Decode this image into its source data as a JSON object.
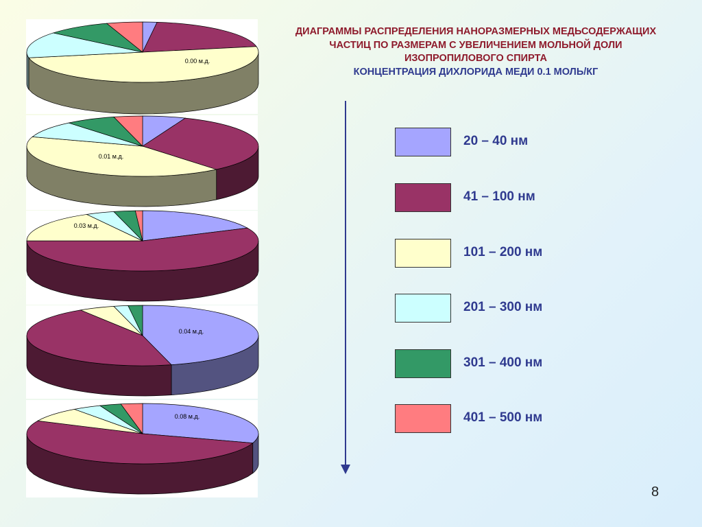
{
  "title": {
    "line1": "ДИАГРАММЫ РАСПРЕДЕЛЕНИЯ НАНОРАЗМЕРНЫХ МЕДЬСОДЕРЖАЩИХ",
    "line2": "ЧАСТИЦ ПО РАЗМЕРАМ С УВЕЛИЧЕНИЕМ МОЛЬНОЙ ДОЛИ",
    "line3": "ИЗОПРОПИЛОВОГО СПИРТА",
    "line4": "КОНЦЕНТРАЦИЯ ДИХЛОРИДА МЕДИ 0.1 МОЛЬ/КГ"
  },
  "legend": [
    {
      "label": "20 – 40 нм",
      "color": "#a5a5ff"
    },
    {
      "label": "41 – 100 нм",
      "color": "#993366"
    },
    {
      "label": "101 – 200 нм",
      "color": "#ffffcc"
    },
    {
      "label": "201 – 300 нм",
      "color": "#ccffff"
    },
    {
      "label": "301 – 400 нм",
      "color": "#339966"
    },
    {
      "label": "401 – 500 нм",
      "color": "#ff7c80"
    }
  ],
  "colors": {
    "slice_colors": [
      "#a5a5ff",
      "#993366",
      "#ffffcc",
      "#ccffff",
      "#339966",
      "#ff7c80"
    ],
    "arrow": "#2f3a8f",
    "title": "#8e1b2c",
    "subtitle": "#2f3a8f"
  },
  "page_number": "8",
  "chart_data": [
    {
      "type": "pie",
      "title": "0.00 м.д.",
      "categories": [
        "20 – 40 нм",
        "41 – 100 нм",
        "101 – 200 нм",
        "201 – 300 нм",
        "301 – 400 нм",
        "401 – 500 нм"
      ],
      "values": [
        2,
        20,
        50,
        14,
        9,
        5
      ]
    },
    {
      "type": "pie",
      "title": "0.01 м.д.",
      "categories": [
        "20 – 40 нм",
        "41 – 100 нм",
        "101 – 200 нм",
        "201 – 300 нм",
        "301 – 400 нм",
        "401 – 500 нм"
      ],
      "values": [
        6,
        33,
        41,
        9,
        7,
        4
      ]
    },
    {
      "type": "pie",
      "title": "0.03 м.д.",
      "categories": [
        "20 – 40 нм",
        "41 – 100 нм",
        "101 – 200 нм",
        "201 – 300 нм",
        "301 – 400 нм",
        "401 – 500 нм"
      ],
      "values": [
        18,
        57,
        17,
        4,
        3,
        1
      ]
    },
    {
      "type": "pie",
      "title": "0.04 м.д.",
      "categories": [
        "20 – 40 нм",
        "41 – 100 нм",
        "101 – 200 нм",
        "201 – 300 нм",
        "301 – 400 нм",
        "401 – 500 нм"
      ],
      "values": [
        46,
        45,
        5,
        2,
        2,
        0
      ]
    },
    {
      "type": "pie",
      "title": "0.08 м.д.",
      "categories": [
        "20 – 40 нм",
        "41 – 100 нм",
        "101 – 200 нм",
        "201 – 300 нм",
        "301 – 400 нм",
        "401 – 500 нм"
      ],
      "values": [
        30,
        52,
        8,
        4,
        3,
        3
      ]
    }
  ]
}
